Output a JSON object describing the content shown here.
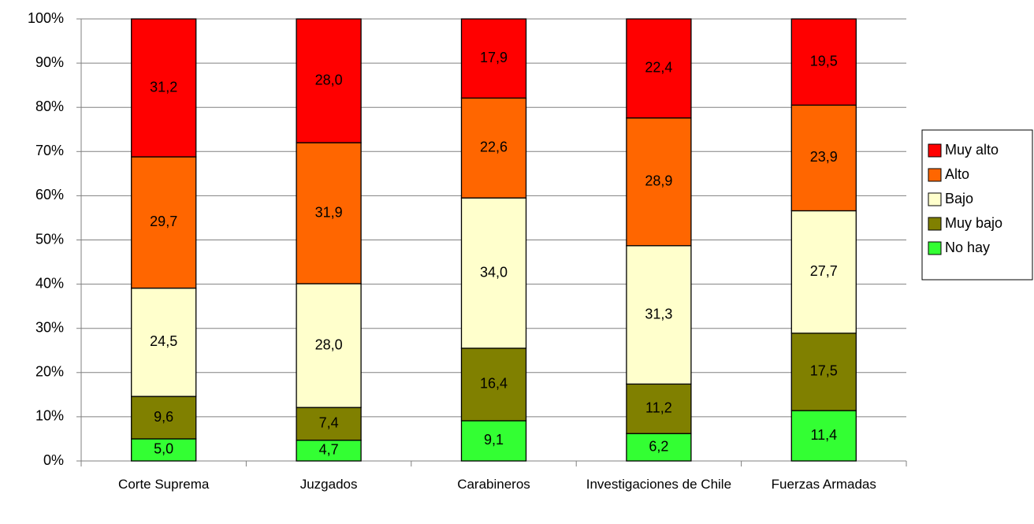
{
  "chart_data": {
    "type": "stacked_bar",
    "categories": [
      "Corte Suprema",
      "Juzgados",
      "Carabineros",
      "Investigaciones de Chile",
      "Fuerzas Armadas"
    ],
    "series": [
      {
        "name": "No hay",
        "color": "#33ff33",
        "values": [
          5.0,
          4.7,
          9.1,
          6.2,
          11.4
        ],
        "value_labels": [
          "5,0",
          "4,7",
          "9,1",
          "6,2",
          "11,4"
        ]
      },
      {
        "name": "Muy bajo",
        "color": "#808000",
        "values": [
          9.6,
          7.4,
          16.4,
          11.2,
          17.5
        ],
        "value_labels": [
          "9,6",
          "7,4",
          "16,4",
          "11,2",
          "17,5"
        ]
      },
      {
        "name": "Bajo",
        "color": "#ffffcc",
        "values": [
          24.5,
          28.0,
          34.0,
          31.3,
          27.7
        ],
        "value_labels": [
          "24,5",
          "28,0",
          "34,0",
          "31,3",
          "27,7"
        ]
      },
      {
        "name": "Alto",
        "color": "#ff6600",
        "values": [
          29.7,
          31.9,
          22.6,
          28.9,
          23.9
        ],
        "value_labels": [
          "29,7",
          "31,9",
          "22,6",
          "28,9",
          "23,9"
        ]
      },
      {
        "name": "Muy alto",
        "color": "#ff0000",
        "values": [
          31.2,
          28.0,
          17.9,
          22.4,
          19.5
        ],
        "value_labels": [
          "31,2",
          "28,0",
          "17,9",
          "22,4",
          "19,5"
        ]
      }
    ],
    "ylim": [
      0,
      100
    ],
    "yticks": [
      {
        "value": 0,
        "label": "0%"
      },
      {
        "value": 10,
        "label": "10%"
      },
      {
        "value": 20,
        "label": "20%"
      },
      {
        "value": 30,
        "label": "30%"
      },
      {
        "value": 40,
        "label": "40%"
      },
      {
        "value": 50,
        "label": "50%"
      },
      {
        "value": 60,
        "label": "60%"
      },
      {
        "value": 70,
        "label": "70%"
      },
      {
        "value": 80,
        "label": "80%"
      },
      {
        "value": 90,
        "label": "90%"
      },
      {
        "value": 100,
        "label": "100%"
      }
    ],
    "grid": true,
    "legend": "right"
  }
}
